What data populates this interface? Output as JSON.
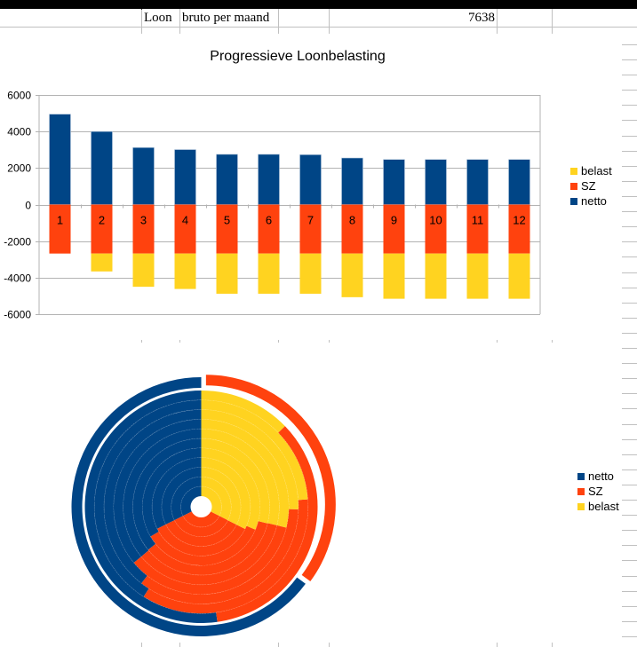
{
  "spreadsheet": {
    "row": {
      "label": "Loon",
      "description": "bruto per maand",
      "value": "7638"
    }
  },
  "colors": {
    "netto": "#004586",
    "SZ": "#ff420e",
    "belast": "#ffd320"
  },
  "chart_data": [
    {
      "type": "bar",
      "stacked": true,
      "title": "Progressieve Loonbelasting",
      "xlabel": "",
      "ylabel": "",
      "categories": [
        "1",
        "2",
        "3",
        "4",
        "5",
        "6",
        "7",
        "8",
        "9",
        "10",
        "11",
        "12"
      ],
      "ylim": [
        -6000,
        6000
      ],
      "yticks": [
        6000,
        4000,
        2000,
        0,
        -2000,
        -4000,
        -6000
      ],
      "ytick_labels": [
        "6000",
        "4000",
        "2000",
        "0",
        "-2000",
        "-4000",
        "-6000"
      ],
      "grid": true,
      "legend_position": "right",
      "legend": [
        "belast",
        "SZ",
        "netto"
      ],
      "series": [
        {
          "name": "netto",
          "values": [
            4950,
            4000,
            3120,
            3010,
            2750,
            2750,
            2730,
            2550,
            2470,
            2470,
            2470,
            2470
          ]
        },
        {
          "name": "SZ",
          "values": [
            -2680,
            -2680,
            -2680,
            -2680,
            -2680,
            -2680,
            -2680,
            -2680,
            -2680,
            -2680,
            -2680,
            -2680
          ]
        },
        {
          "name": "belast",
          "values": [
            0,
            -980,
            -1820,
            -1940,
            -2200,
            -2200,
            -2200,
            -2390,
            -2475,
            -2475,
            -2475,
            -2475
          ]
        }
      ]
    },
    {
      "type": "pie",
      "variant": "multi-ring donut",
      "title": "",
      "ring_order": "outermost = 1, innermost = 12",
      "exploded_ring": "1",
      "legend_position": "right",
      "legend": [
        "netto",
        "SZ",
        "belast"
      ],
      "rings": [
        "1",
        "2",
        "3",
        "4",
        "5",
        "6",
        "7",
        "8",
        "9",
        "10",
        "11",
        "12"
      ],
      "series": [
        {
          "name": "netto",
          "values": [
            4950,
            4000,
            3120,
            3010,
            2750,
            2750,
            2730,
            2550,
            2470,
            2470,
            2470,
            2470
          ]
        },
        {
          "name": "SZ",
          "values": [
            2680,
            2680,
            2680,
            2680,
            2680,
            2680,
            2680,
            2680,
            2680,
            2680,
            2680,
            2680
          ]
        },
        {
          "name": "belast",
          "values": [
            0,
            980,
            1820,
            1940,
            2200,
            2200,
            2200,
            2390,
            2475,
            2475,
            2475,
            2475
          ]
        }
      ]
    }
  ]
}
